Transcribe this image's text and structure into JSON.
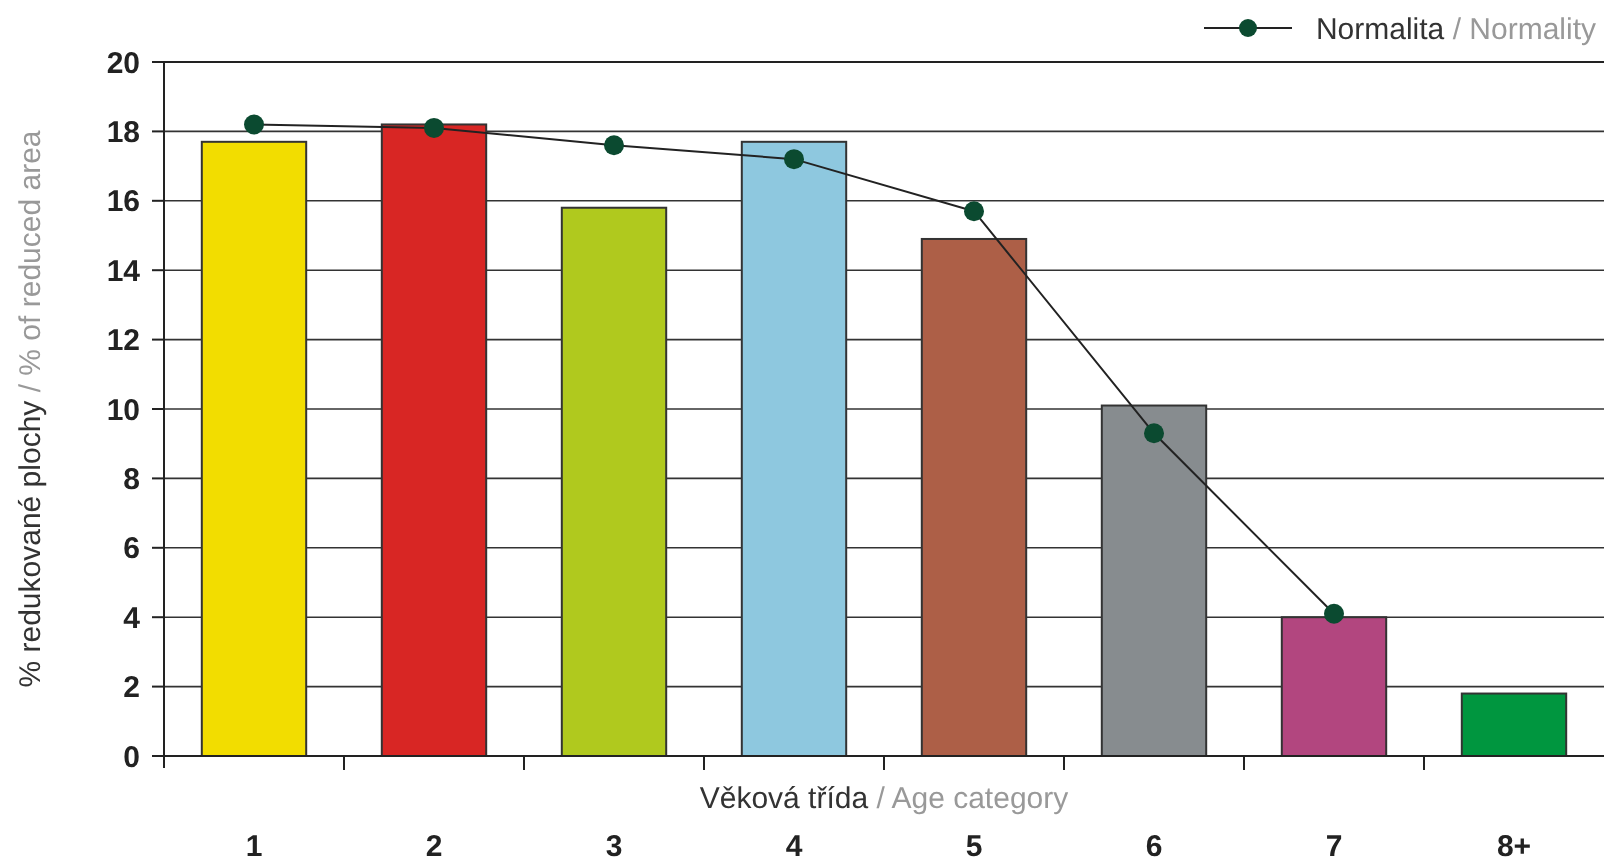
{
  "chart_data": {
    "type": "bar",
    "xlabel": "Věková třída / Age category",
    "ylabel": "% redukované plochy / % of reduced area",
    "categories": [
      "1",
      "2",
      "3",
      "4",
      "5",
      "6",
      "7",
      "8+"
    ],
    "series": [
      {
        "colors": [
          "#f2dd00",
          "#d82624",
          "#b0c91e",
          "#8ec8df",
          "#ad5f47",
          "#878c8f",
          "#b2467f",
          "#00963f"
        ],
        "values": [
          17.7,
          18.2,
          15.8,
          17.7,
          14.9,
          10.1,
          4.0,
          1.8
        ]
      },
      {
        "type": "line",
        "name": "Normalita / Normality",
        "color": "#0b4a30",
        "marker": "circle",
        "values": [
          18.2,
          18.1,
          17.6,
          17.2,
          15.7,
          9.3,
          4.1,
          null
        ]
      }
    ],
    "ylim": [
      0,
      20
    ],
    "yticks": [
      0,
      2,
      4,
      6,
      8,
      10,
      12,
      14,
      16,
      18,
      20
    ],
    "grid": "y",
    "legend": "top right"
  }
}
